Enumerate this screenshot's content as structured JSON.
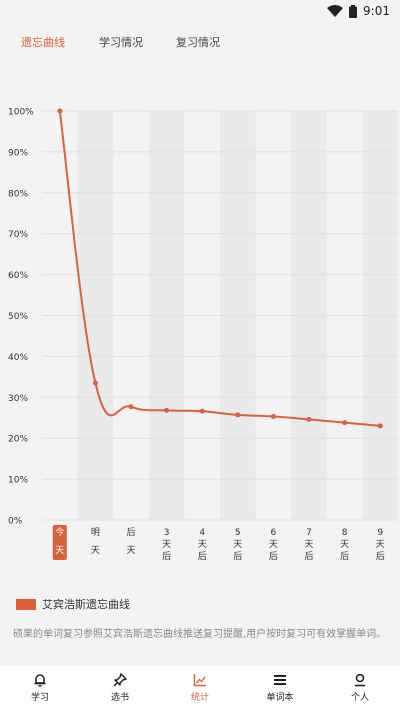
{
  "status_bar": {
    "time": "9:01",
    "icons": [
      "wifi-icon",
      "battery-icon"
    ]
  },
  "tabs": [
    {
      "label": "遗忘曲线",
      "active": true
    },
    {
      "label": "学习情况",
      "active": false
    },
    {
      "label": "复习情况",
      "active": false
    }
  ],
  "legend": {
    "label": "艾宾浩斯遗忘曲线",
    "color": "#d9623b"
  },
  "description": "硕果的单词复习参照艾宾浩斯遗忘曲线推送复习提醒,用户按时复习可有效掌握单词。",
  "bottom_nav": [
    {
      "label": "学习",
      "icon": "bell-icon",
      "active": false
    },
    {
      "label": "选书",
      "icon": "pin-icon",
      "active": false
    },
    {
      "label": "统计",
      "icon": "chart-icon",
      "active": true
    },
    {
      "label": "单词本",
      "icon": "menu-icon",
      "active": false
    },
    {
      "label": "个人",
      "icon": "person-icon",
      "active": false
    }
  ],
  "chart_data": {
    "type": "line",
    "categories": [
      "今天",
      "明天",
      "后天",
      "3天后",
      "4天后",
      "5天后",
      "6天后",
      "7天后",
      "8天后",
      "9天后"
    ],
    "series": [
      {
        "name": "艾宾浩斯遗忘曲线",
        "values": [
          100,
          33.5,
          27.7,
          26.8,
          26.6,
          25.7,
          25.3,
          24.6,
          23.8,
          23.0
        ],
        "color": "#d9623b"
      }
    ],
    "yticks": [
      "0%",
      "10%",
      "20%",
      "30%",
      "40%",
      "50%",
      "60%",
      "70%",
      "80%",
      "90%",
      "100%"
    ],
    "ylim": [
      0,
      100
    ],
    "highlighted_category": 0,
    "grid": true,
    "legend_position": "bottom-left"
  }
}
